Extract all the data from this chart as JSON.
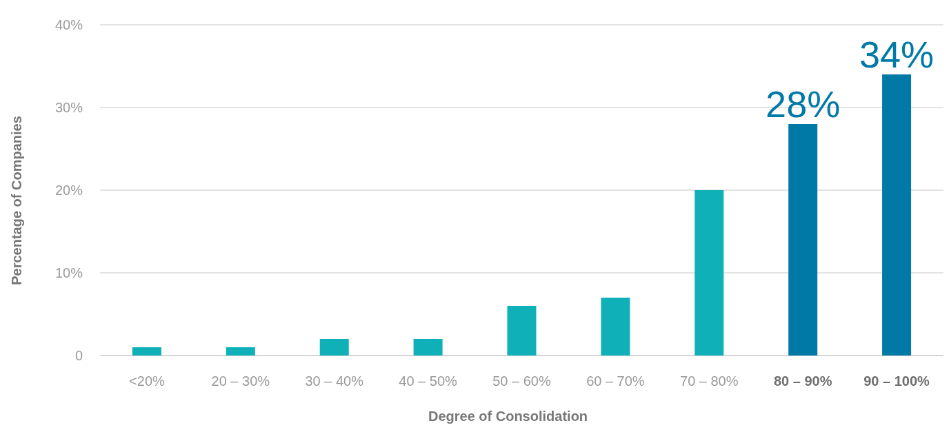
{
  "chart_data": {
    "type": "bar",
    "xlabel": "Degree of Consolidation",
    "ylabel": "Percentage of Companies",
    "categories": [
      "<20%",
      "20 – 30%",
      "30 – 40%",
      "40 – 50%",
      "50 – 60%",
      "60 – 70%",
      "70 – 80%",
      "80 – 90%",
      "90 – 100%"
    ],
    "values": [
      1,
      1,
      2,
      2,
      6,
      7,
      20,
      28,
      34
    ],
    "colors": [
      "#0fb0b8",
      "#0fb0b8",
      "#0fb0b8",
      "#0fb0b8",
      "#0fb0b8",
      "#0fb0b8",
      "#0fb0b8",
      "#0079a6",
      "#0079a6"
    ],
    "value_labels": [
      null,
      null,
      null,
      null,
      null,
      null,
      null,
      "28%",
      "34%"
    ],
    "ylim": [
      0,
      40
    ],
    "yticks": [
      {
        "value": 0,
        "label": "0"
      },
      {
        "value": 10,
        "label": "10%"
      },
      {
        "value": 20,
        "label": "20%"
      },
      {
        "value": 30,
        "label": "30%"
      },
      {
        "value": 40,
        "label": "40%"
      }
    ],
    "grid": "y"
  }
}
